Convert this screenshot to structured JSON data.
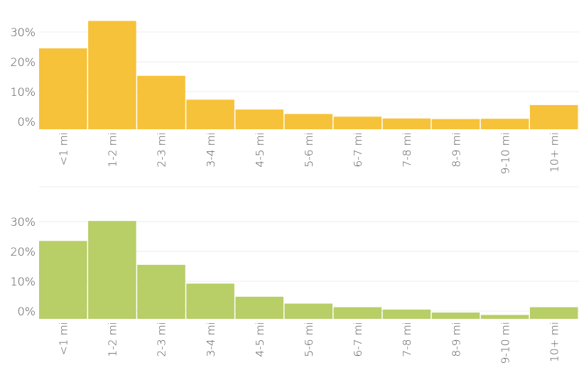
{
  "chart_data": [
    {
      "type": "bar",
      "categories": [
        "<1 mi",
        "1-2 mi",
        "2-3 mi",
        "3-4 mi",
        "4-5 mi",
        "5-6 mi",
        "6-7 mi",
        "7-8 mi",
        "8-9 mi",
        "9-10 mi",
        "10+ mi"
      ],
      "values": [
        24.5,
        33.7,
        15.3,
        7.3,
        4.0,
        2.5,
        1.6,
        1.0,
        0.8,
        0.9,
        5.5
      ],
      "ylim": [
        -2.2,
        37
      ],
      "yticks": [
        0,
        10,
        20,
        30
      ],
      "ytick_labels": [
        "0%",
        "10%",
        "20%",
        "30%"
      ],
      "color": "#F6C23A",
      "grid": true,
      "legend": false
    },
    {
      "type": "bar",
      "categories": [
        "<1 mi",
        "1-2 mi",
        "2-3 mi",
        "3-4 mi",
        "4-5 mi",
        "5-6 mi",
        "6-7 mi",
        "7-8 mi",
        "8-9 mi",
        "9-10 mi",
        "10+ mi"
      ],
      "values": [
        23.5,
        30.2,
        15.5,
        9.2,
        4.8,
        2.5,
        1.3,
        0.5,
        -0.5,
        -1.3,
        1.3
      ],
      "ylim": [
        -2.2,
        33.5
      ],
      "yticks": [
        0,
        10,
        20,
        30
      ],
      "ytick_labels": [
        "0%",
        "10%",
        "20%",
        "30%"
      ],
      "color": "#B8CE67",
      "grid": true,
      "legend": false
    }
  ]
}
